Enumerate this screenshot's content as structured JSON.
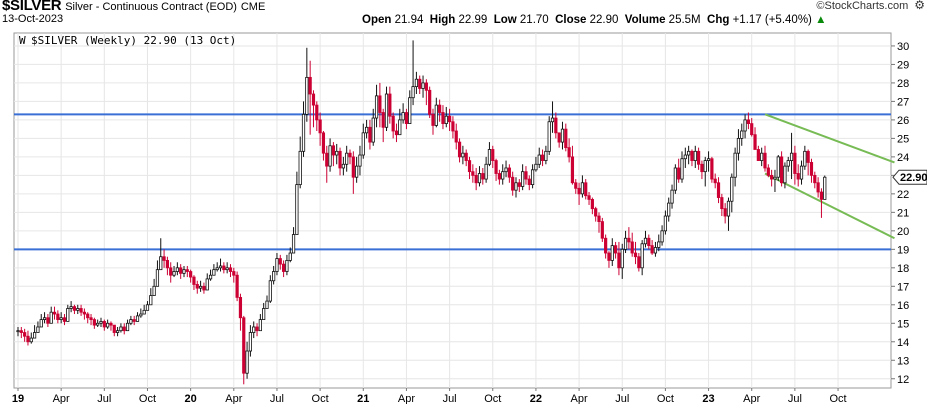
{
  "header": {
    "symbol": "$SILVER",
    "name": "Silver - Continuous Contract (EOD)",
    "exchange": "CME",
    "date": "13-Oct-2023",
    "open_label": "Open",
    "open": "21.94",
    "high_label": "High",
    "high": "22.99",
    "low_label": "Low",
    "low": "21.70",
    "close_label": "Close",
    "close": "22.90",
    "volume_label": "Volume",
    "volume": "25.5M",
    "chg_label": "Chg",
    "chg": "+1.17 (+5.40%)",
    "chg_arrow": "▲",
    "brand": "©StockCharts.com",
    "legend": "$SILVER (Weekly) 22.90 (13 Oct)"
  },
  "colors": {
    "up": "#111111",
    "down": "#cc0033",
    "hline": "#3a6fd6",
    "channel": "#77bb55",
    "grid": "#e6e6e6"
  },
  "chart_data": {
    "type": "candlestick",
    "ylim": [
      11.5,
      30.7
    ],
    "y_ticks": [
      12,
      13,
      14,
      15,
      16,
      17,
      18,
      19,
      20,
      21,
      22,
      23,
      24,
      25,
      26,
      27,
      28,
      29,
      30
    ],
    "last_value_label": "22.90",
    "x_tick_labels": [
      "19",
      "Apr",
      "Jul",
      "Oct",
      "20",
      "Apr",
      "Jul",
      "Oct",
      "21",
      "Apr",
      "Jul",
      "Oct",
      "22",
      "Apr",
      "Jul",
      "Oct",
      "23",
      "Apr",
      "Jul",
      "Oct"
    ],
    "x_tick_positions": [
      0,
      13,
      26,
      39,
      52,
      65,
      78,
      91,
      104,
      117,
      130,
      143,
      156,
      169,
      182,
      195,
      208,
      221,
      234,
      247
    ],
    "resistance_level": 26.3,
    "support_level": 19.0,
    "channel_upper": [
      [
        225,
        26.3
      ],
      [
        264,
        23.7
      ]
    ],
    "channel_lower": [
      [
        225,
        23.1
      ],
      [
        264,
        19.6
      ]
    ],
    "closes": [
      14.6,
      14.5,
      14.3,
      14.0,
      14.2,
      14.5,
      14.8,
      15.2,
      15.3,
      15.0,
      15.6,
      15.5,
      15.2,
      15.3,
      15.1,
      15.8,
      15.9,
      15.7,
      15.8,
      15.6,
      15.5,
      15.3,
      15.2,
      14.9,
      15.0,
      15.1,
      14.8,
      15.0,
      14.9,
      14.5,
      14.6,
      14.8,
      14.6,
      15.0,
      15.2,
      15.1,
      15.4,
      15.5,
      15.7,
      16.0,
      16.5,
      17.0,
      17.9,
      18.6,
      18.4,
      18.0,
      17.6,
      17.8,
      18.0,
      17.7,
      17.9,
      17.8,
      17.5,
      17.1,
      16.9,
      17.0,
      16.8,
      17.4,
      17.6,
      17.9,
      18.0,
      18.1,
      17.9,
      18.0,
      17.8,
      17.6,
      16.4,
      15.3,
      12.3,
      13.5,
      14.5,
      14.8,
      14.6,
      15.2,
      15.8,
      16.2,
      17.3,
      17.8,
      18.5,
      18.2,
      17.8,
      18.4,
      18.8,
      19.8,
      22.5,
      24.3,
      26.3,
      28.3,
      27.4,
      26.8,
      26.0,
      25.3,
      24.2,
      23.5,
      24.6,
      24.1,
      24.3,
      23.4,
      23.6,
      24.2,
      24.0,
      22.9,
      23.5,
      24.1,
      25.3,
      25.6,
      24.8,
      26.1,
      27.3,
      26.4,
      25.6,
      27.4,
      26.2,
      25.4,
      25.2,
      26.0,
      26.4,
      25.8,
      27.2,
      27.8,
      28.2,
      27.7,
      28.0,
      27.6,
      26.3,
      25.7,
      26.8,
      26.4,
      25.8,
      26.2,
      25.9,
      25.4,
      24.8,
      24.0,
      24.2,
      23.8,
      23.2,
      23.0,
      22.6,
      23.1,
      22.8,
      23.6,
      24.4,
      23.8,
      23.1,
      22.8,
      23.2,
      23.4,
      22.9,
      22.2,
      22.6,
      22.4,
      23.2,
      22.8,
      22.5,
      23.3,
      23.6,
      24.1,
      23.8,
      24.3,
      25.9,
      26.1,
      25.3,
      24.8,
      25.5,
      24.5,
      24.0,
      22.6,
      22.3,
      22.0,
      22.6,
      21.9,
      21.7,
      21.2,
      20.8,
      20.5,
      19.6,
      18.8,
      18.4,
      19.2,
      18.8,
      18.0,
      19.0,
      19.6,
      19.4,
      18.8,
      18.6,
      18.0,
      19.3,
      19.6,
      19.2,
      18.8,
      19.1,
      19.4,
      20.0,
      20.8,
      21.5,
      22.2,
      23.4,
      22.8,
      23.9,
      24.1,
      24.3,
      23.8,
      24.3,
      23.6,
      23.2,
      23.8,
      23.9,
      22.8,
      22.6,
      21.8,
      21.2,
      20.8,
      21.6,
      22.9,
      24.2,
      25.0,
      25.4,
      26.0,
      25.8,
      25.2,
      24.4,
      23.8,
      24.2,
      23.4,
      23.0,
      22.8,
      22.9,
      24.0,
      22.6,
      23.5,
      23.8,
      24.2,
      23.1,
      22.8,
      23.5,
      24.3,
      23.7,
      23.0,
      22.6,
      22.1,
      21.7,
      22.9
    ],
    "highs": [
      14.8,
      14.8,
      14.7,
      14.6,
      14.5,
      14.9,
      15.1,
      15.5,
      15.6,
      15.5,
      15.9,
      15.9,
      15.7,
      15.6,
      15.5,
      16.0,
      16.2,
      16.0,
      16.0,
      16.0,
      15.8,
      15.6,
      15.5,
      15.3,
      15.2,
      15.3,
      15.2,
      15.2,
      15.1,
      14.9,
      14.8,
      15.0,
      15.0,
      15.2,
      15.4,
      15.4,
      15.6,
      15.8,
      16.0,
      16.2,
      16.9,
      17.4,
      18.4,
      19.6,
      19.0,
      18.6,
      18.3,
      18.1,
      18.3,
      18.2,
      18.1,
      18.1,
      17.9,
      17.6,
      17.3,
      17.3,
      17.2,
      17.7,
      17.9,
      18.2,
      18.3,
      18.5,
      18.3,
      18.3,
      18.2,
      18.0,
      17.8,
      16.6,
      15.4,
      14.0,
      14.9,
      15.1,
      15.0,
      15.5,
      16.1,
      16.5,
      17.6,
      18.1,
      18.8,
      18.7,
      18.4,
      18.7,
      19.1,
      20.2,
      23.2,
      25.1,
      27.0,
      29.9,
      29.2,
      27.6,
      27.0,
      26.4,
      25.4,
      24.6,
      25.0,
      24.8,
      24.7,
      24.5,
      24.0,
      24.6,
      24.4,
      24.3,
      24.0,
      24.6,
      25.8,
      26.0,
      26.0,
      26.6,
      27.9,
      28.0,
      26.6,
      27.8,
      27.8,
      26.4,
      25.8,
      26.6,
      26.9,
      26.6,
      27.6,
      30.3,
      28.6,
      28.4,
      28.4,
      28.2,
      27.8,
      26.6,
      27.2,
      27.1,
      26.8,
      26.7,
      26.6,
      26.2,
      25.8,
      25.0,
      24.6,
      24.4,
      24.0,
      23.6,
      23.4,
      23.5,
      23.4,
      24.0,
      24.8,
      24.6,
      23.9,
      23.3,
      23.6,
      23.8,
      23.6,
      23.2,
      22.9,
      22.8,
      23.6,
      23.5,
      23.0,
      23.6,
      24.0,
      24.5,
      24.4,
      24.6,
      26.2,
      27.0,
      26.4,
      25.3,
      25.9,
      25.8,
      25.0,
      24.6,
      22.8,
      22.6,
      23.0,
      22.8,
      22.1,
      21.8,
      21.3,
      21.0,
      20.7,
      19.8,
      18.9,
      19.6,
      19.4,
      19.4,
      19.3,
      20.0,
      20.2,
      19.9,
      19.4,
      18.8,
      19.5,
      20.0,
      19.8,
      19.5,
      19.4,
      19.8,
      20.3,
      21.1,
      21.8,
      22.5,
      23.6,
      23.9,
      24.3,
      24.5,
      24.6,
      24.4,
      24.6,
      24.5,
      23.8,
      24.0,
      24.3,
      24.0,
      23.1,
      22.9,
      22.0,
      21.5,
      21.8,
      23.1,
      24.5,
      25.5,
      25.8,
      26.3,
      26.4,
      26.1,
      25.6,
      24.6,
      24.5,
      24.6,
      23.6,
      23.3,
      23.3,
      24.1,
      24.3,
      23.7,
      24.0,
      25.3,
      24.6,
      23.6,
      23.8,
      24.6,
      24.4,
      23.9,
      23.2,
      22.9,
      22.3,
      22.99
    ],
    "lows": [
      14.3,
      14.2,
      14.0,
      13.8,
      13.9,
      14.2,
      14.5,
      14.8,
      15.0,
      14.8,
      15.2,
      15.2,
      15.0,
      15.0,
      14.9,
      15.3,
      15.6,
      15.5,
      15.5,
      15.4,
      15.2,
      15.0,
      14.9,
      14.7,
      14.8,
      14.8,
      14.6,
      14.7,
      14.6,
      14.3,
      14.3,
      14.5,
      14.4,
      14.6,
      14.9,
      14.9,
      15.1,
      15.3,
      15.5,
      15.8,
      16.2,
      16.7,
      17.6,
      18.3,
      18.0,
      17.6,
      17.2,
      17.5,
      17.6,
      17.4,
      17.5,
      17.5,
      17.2,
      16.8,
      16.6,
      16.7,
      16.6,
      17.0,
      17.3,
      17.6,
      17.8,
      17.8,
      17.7,
      17.7,
      17.5,
      17.2,
      16.2,
      14.6,
      11.7,
      12.0,
      13.2,
      14.2,
      14.3,
      14.6,
      15.4,
      15.8,
      16.1,
      17.1,
      17.6,
      17.9,
      17.5,
      17.6,
      18.3,
      18.8,
      19.8,
      22.3,
      24.0,
      25.9,
      25.2,
      25.6,
      25.4,
      24.6,
      23.8,
      22.6,
      23.2,
      23.5,
      23.6,
      23.0,
      23.0,
      23.2,
      23.6,
      22.0,
      22.6,
      23.0,
      23.9,
      25.0,
      24.4,
      24.6,
      25.6,
      25.6,
      24.8,
      25.4,
      25.8,
      25.0,
      24.8,
      25.2,
      25.8,
      25.5,
      25.8,
      26.8,
      27.4,
      27.4,
      27.2,
      26.8,
      26.1,
      25.2,
      25.6,
      25.9,
      25.5,
      25.6,
      25.4,
      25.0,
      24.4,
      23.7,
      23.6,
      23.5,
      22.8,
      22.6,
      22.2,
      22.4,
      22.5,
      22.6,
      23.5,
      23.4,
      22.7,
      22.5,
      22.5,
      22.9,
      22.6,
      21.9,
      21.8,
      22.1,
      22.2,
      22.5,
      22.2,
      22.3,
      23.2,
      23.4,
      23.5,
      23.6,
      24.1,
      25.3,
      25.0,
      24.5,
      24.4,
      24.3,
      23.7,
      22.5,
      22.0,
      21.4,
      21.8,
      21.7,
      21.4,
      20.9,
      20.5,
      19.9,
      19.4,
      18.5,
      18.0,
      18.1,
      18.5,
      17.6,
      17.4,
      18.8,
      19.0,
      18.6,
      18.2,
      17.8,
      17.6,
      19.1,
      19.0,
      18.7,
      18.6,
      18.9,
      19.2,
      19.8,
      20.5,
      21.2,
      22.0,
      22.6,
      22.6,
      23.4,
      23.6,
      23.5,
      23.4,
      23.3,
      22.8,
      22.4,
      23.2,
      22.6,
      22.3,
      21.5,
      20.8,
      20.4,
      20.0,
      21.0,
      22.4,
      23.8,
      24.6,
      25.0,
      25.5,
      25.1,
      24.4,
      23.8,
      23.5,
      23.2,
      22.9,
      22.4,
      22.1,
      22.7,
      22.4,
      22.3,
      23.2,
      22.8,
      22.5,
      22.4,
      22.5,
      23.3,
      23.0,
      22.6,
      22.3,
      21.8,
      20.7,
      21.7
    ]
  }
}
